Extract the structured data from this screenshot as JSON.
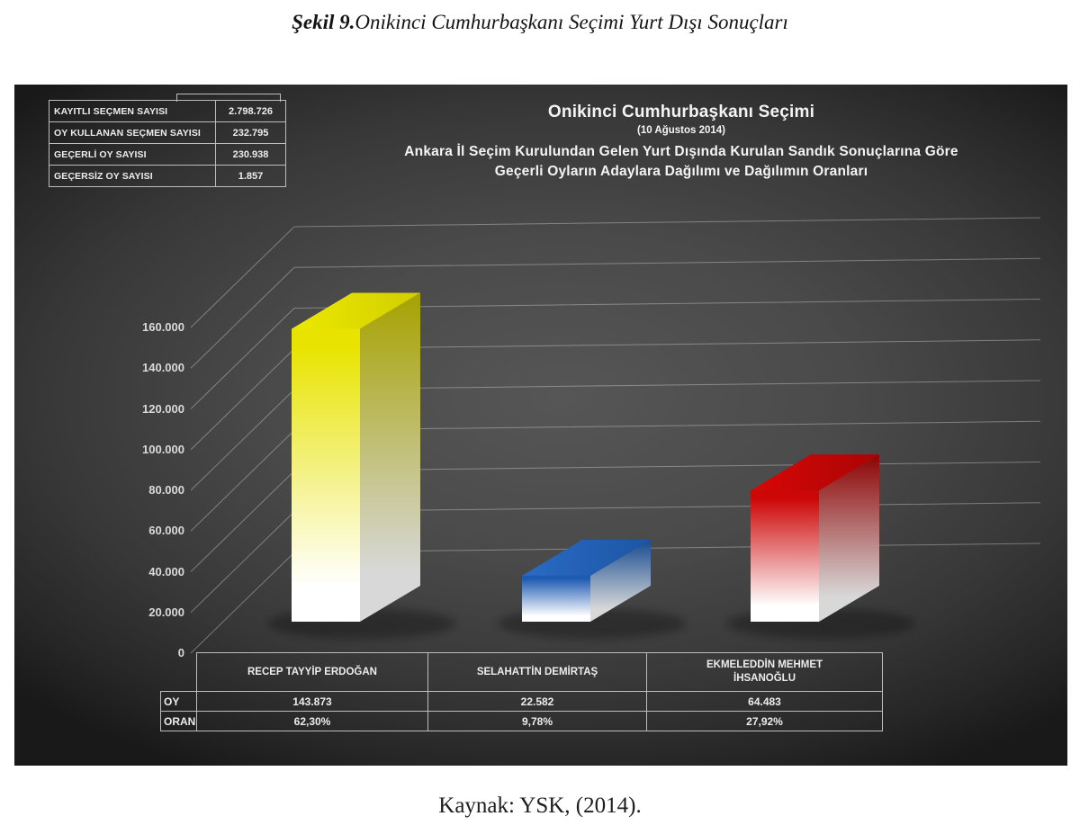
{
  "figure": {
    "caption_prefix": "Şekil 9.",
    "caption_text": "Onikinci Cumhurbaşkanı Seçimi Yurt Dışı Sonuçları",
    "source": "Kaynak: YSK, (2014)."
  },
  "stats_table": {
    "rows": [
      {
        "label": "KAYITLI SEÇMEN SAYISI",
        "value": "2.798.726"
      },
      {
        "label": "OY KULLANAN SEÇMEN SAYISI",
        "value": "232.795"
      },
      {
        "label": "GEÇERLİ OY SAYISI",
        "value": "230.938"
      },
      {
        "label": "GEÇERSİZ OY SAYISI",
        "value": "1.857"
      }
    ]
  },
  "chart_data": {
    "type": "bar",
    "title": "Onikinci Cumhurbaşkanı Seçimi",
    "subtitle": "(10 Ağustos 2014)",
    "description_line1": "Ankara İl Seçim Kurulundan Gelen Yurt Dışında Kurulan Sandık Sonuçlarına Göre",
    "description_line2": "Geçerli Oyların Adaylara Dağılımı ve Dağılımın Oranları",
    "categories": [
      "RECEP TAYYİP ERDOĞAN",
      "SELAHATTİN DEMİRTAŞ",
      "EKMELEDDİN MEHMET İHSANOĞLU"
    ],
    "values": [
      143873,
      22582,
      64483
    ],
    "value_labels": [
      "143.873",
      "22.582",
      "64.483"
    ],
    "percent_labels": [
      "62,30%",
      "9,78%",
      "27,92%"
    ],
    "row_label_votes": "OY",
    "row_label_share": "ORAN",
    "ylim": [
      0,
      160000
    ],
    "ytick_step": 20000,
    "yticks": [
      "0",
      "20.000",
      "40.000",
      "60.000",
      "80.000",
      "100.000",
      "120.000",
      "140.000",
      "160.000"
    ],
    "grid": true,
    "legend": "none",
    "background": "#3f3f3f",
    "bars": [
      {
        "name": "erdogan",
        "front_top": "#e8e300",
        "face_bottom": "#ffffff",
        "top_face": "#ece800",
        "top_face_dark": "#d2ce00",
        "side_top": "#a6a200",
        "side_bottom": "#d8d8d8"
      },
      {
        "name": "demirtas",
        "front_top": "#1d5ab2",
        "face_bottom": "#ffffff",
        "top_face": "#2b6bc5",
        "top_face_dark": "#1c55a4",
        "side_top": "#164a90",
        "side_bottom": "#d8d8d8"
      },
      {
        "name": "ihsanoglu",
        "front_top": "#cd0606",
        "face_bottom": "#ffffff",
        "top_face": "#d90707",
        "top_face_dark": "#a90404",
        "side_top": "#8d0303",
        "side_bottom": "#d8d8d8"
      }
    ]
  }
}
